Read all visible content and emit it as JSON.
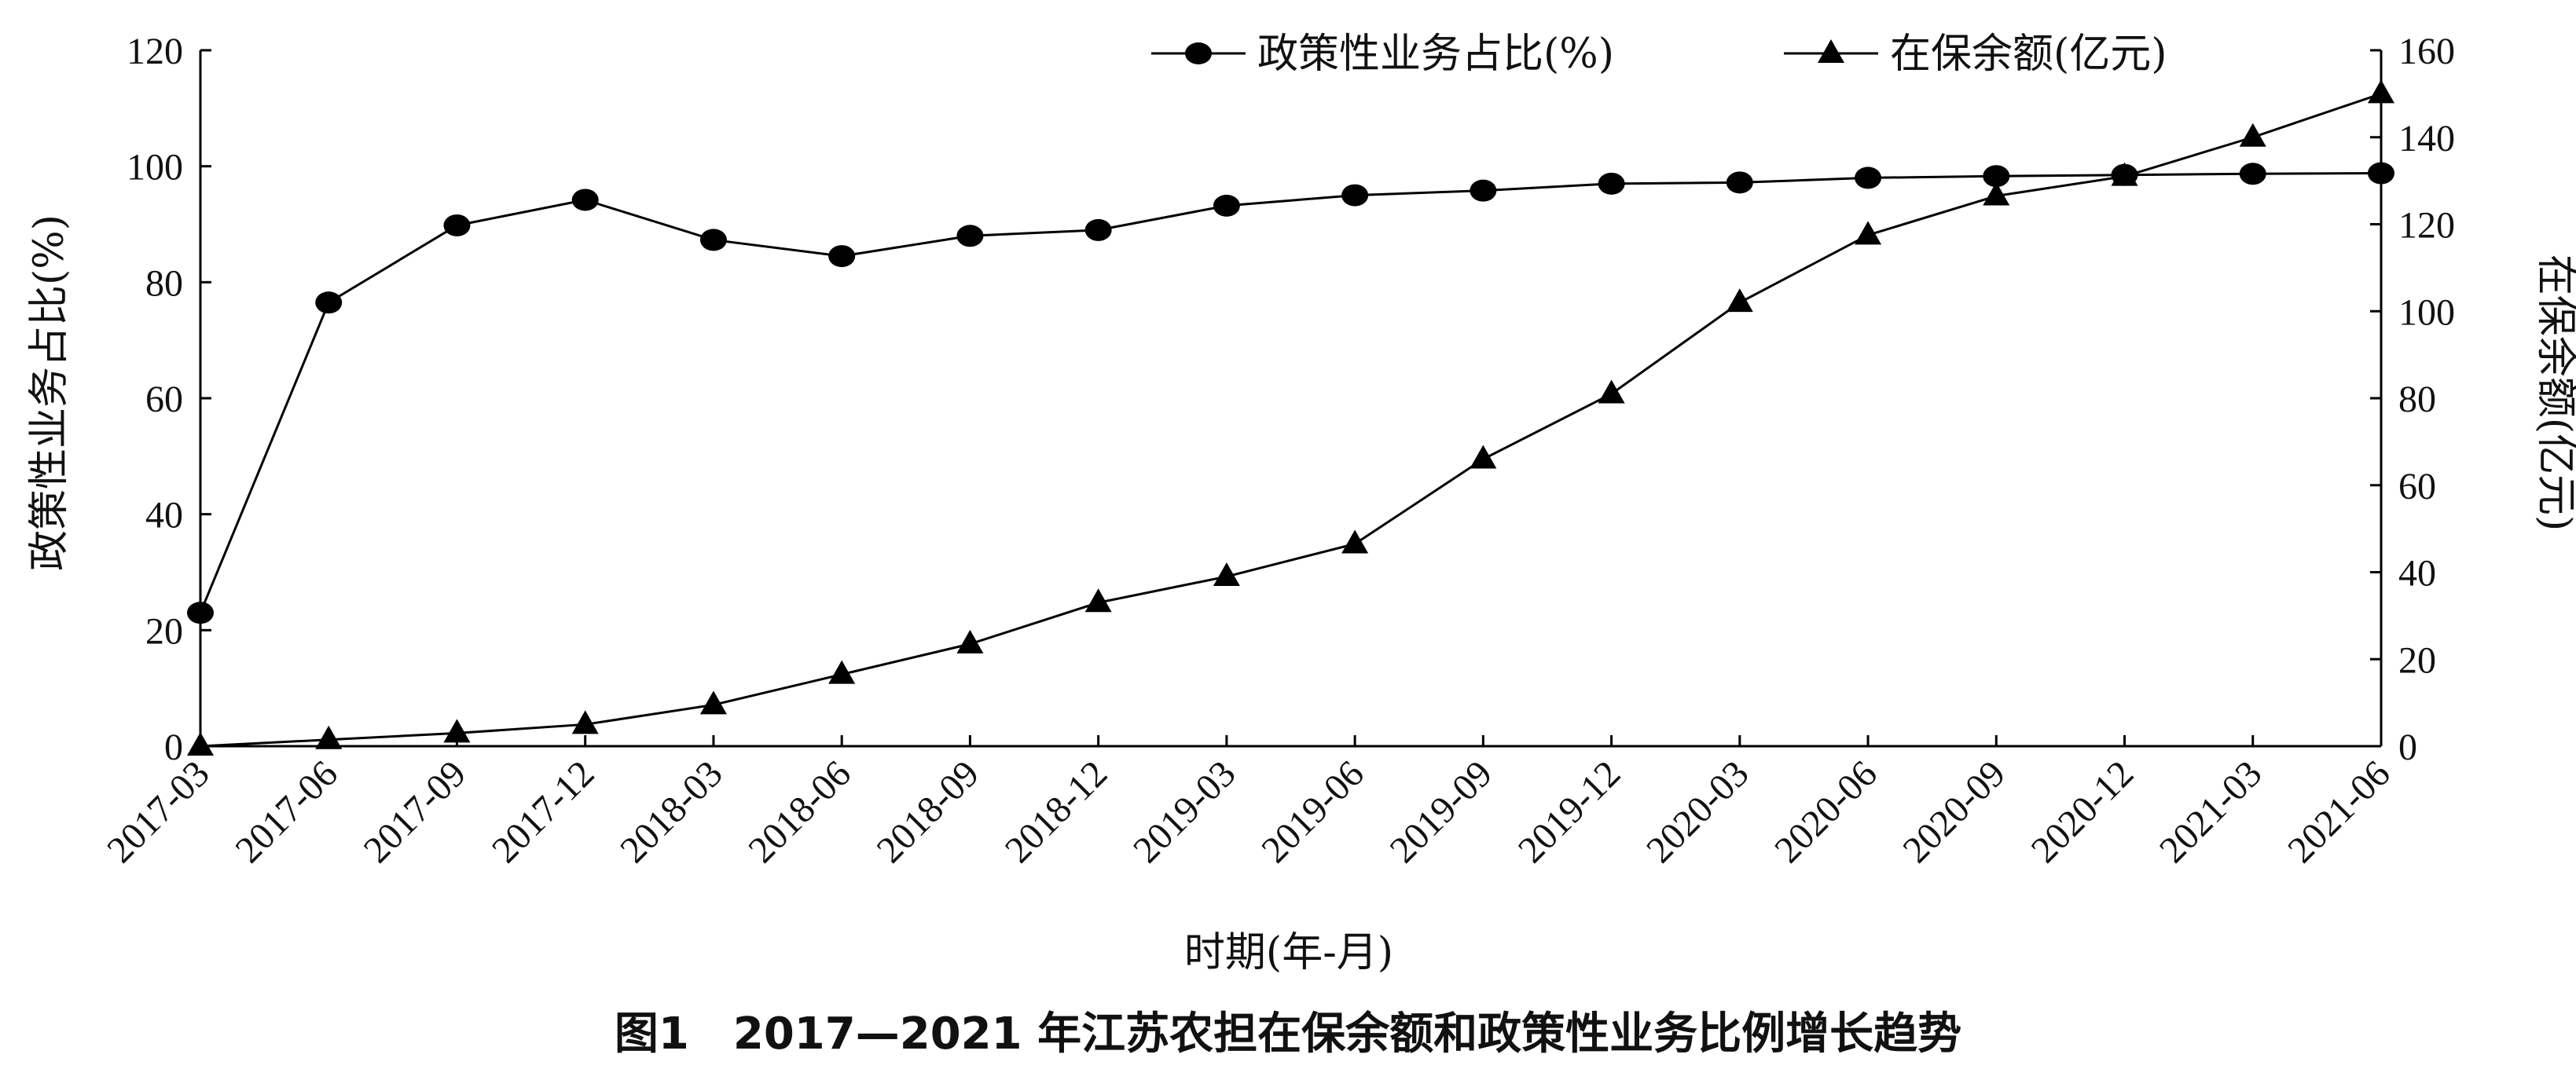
{
  "chart_data": {
    "type": "line",
    "caption": "图1　2017—2021 年江苏农担在保余额和政策性业务比例增长趋势",
    "xlabel": "时期(年-月)",
    "ylabel_left": "政策性业务占比(%)",
    "ylabel_right": "在保余额(亿元)",
    "categories": [
      "2017-03",
      "2017-06",
      "2017-09",
      "2017-12",
      "2018-03",
      "2018-06",
      "2018-09",
      "2018-12",
      "2019-03",
      "2019-06",
      "2019-09",
      "2019-12",
      "2020-03",
      "2020-06",
      "2020-09",
      "2020-12",
      "2021-03",
      "2021-06"
    ],
    "ylim_left": [
      0,
      120
    ],
    "yticks_left": [
      0,
      20,
      40,
      60,
      80,
      100,
      120
    ],
    "ylim_right": [
      0,
      160
    ],
    "yticks_right": [
      0,
      20,
      40,
      60,
      80,
      100,
      120,
      140,
      160
    ],
    "legend_position": "top-right",
    "grid": false,
    "series": [
      {
        "name": "政策性业务占比(%)",
        "axis": "left",
        "marker": "circle",
        "values": [
          23,
          76.5,
          89.8,
          94.2,
          87.3,
          84.5,
          88,
          89,
          93.2,
          95,
          95.8,
          97,
          97.2,
          98,
          98.3,
          98.5,
          98.7,
          98.8
        ]
      },
      {
        "name": "在保余额(亿元)",
        "axis": "right",
        "marker": "triangle",
        "values": [
          0,
          1.5,
          3,
          5,
          9.5,
          16.5,
          23.5,
          33,
          39,
          46.5,
          66,
          81,
          102,
          117.5,
          126.5,
          131,
          140,
          150
        ]
      }
    ]
  }
}
